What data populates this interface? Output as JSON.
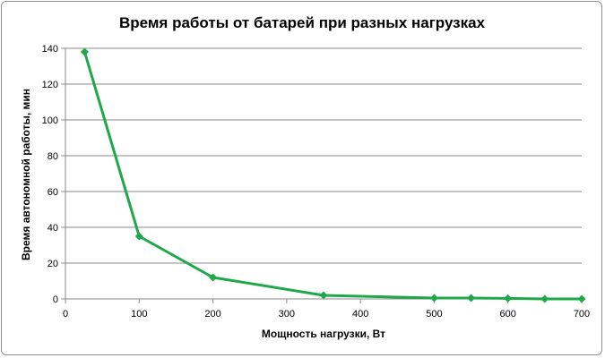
{
  "chart_data": {
    "type": "line",
    "title": "Время работы  от батарей  при разных  нагрузках",
    "xlabel": "Мощность нагрузки, Вт",
    "ylabel": "Время автономной работы, мин",
    "xlim": [
      0,
      700
    ],
    "ylim": [
      0,
      140
    ],
    "xticks": [
      0,
      100,
      200,
      300,
      400,
      500,
      600,
      700
    ],
    "yticks": [
      0,
      20,
      40,
      60,
      80,
      100,
      120,
      140
    ],
    "grid": "horizontal",
    "legend": "none",
    "series": [
      {
        "color": "#1fa84a",
        "marker": "diamond",
        "x": [
          26,
          100,
          200,
          350,
          500,
          550,
          600,
          650,
          700
        ],
        "y": [
          138,
          35,
          12,
          2,
          0.5,
          0.5,
          0.3,
          0,
          0
        ]
      }
    ]
  }
}
